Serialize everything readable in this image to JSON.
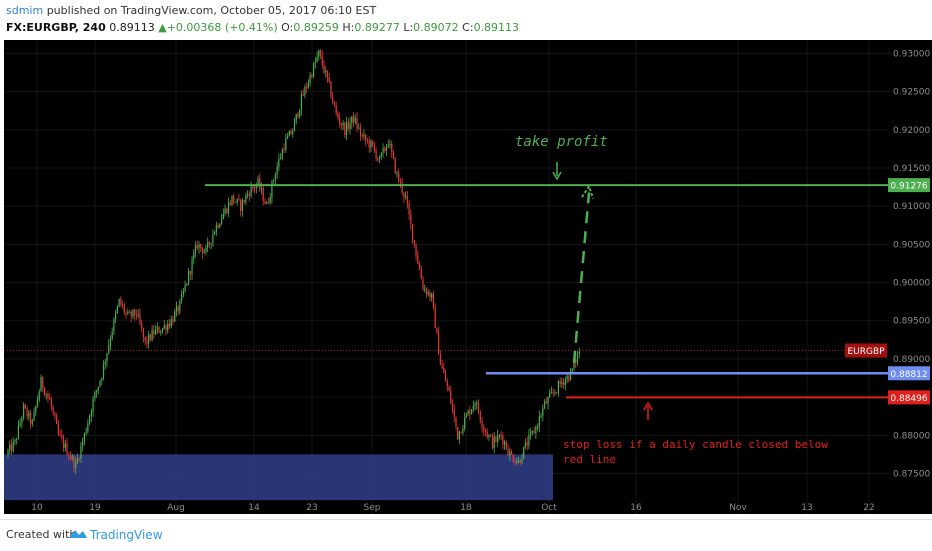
{
  "header": {
    "author": "sdmim",
    "published_text": "published on TradingView.com, October 05, 2017 06:10 EST",
    "symbol": "FX:EURGBP, 240",
    "last": "0.89113",
    "change": "+0.00368 (+0.41%)",
    "o_label": "O:",
    "o": "0.89259",
    "h_label": "H:",
    "h": "0.89277",
    "l_label": "L:",
    "l": "0.89072",
    "c_label": "C:",
    "c": "0.89113"
  },
  "footer": {
    "created_with": "Created with",
    "brand": "TradingView"
  },
  "colors": {
    "background": "#000000",
    "up": "#4caf50",
    "down": "#e53935",
    "take_profit": "#4caf50",
    "entry": "#6d8df2",
    "stop": "#e0201c",
    "zone": "#2e3a80",
    "tag_red": "#a30f0f"
  },
  "chart_data": {
    "type": "candlestick",
    "symbol": "EURGBP",
    "timeframe": "240",
    "ylim": [
      0.871,
      0.9315
    ],
    "y_ticks": [
      "0.93000",
      "0.92500",
      "0.92000",
      "0.91500",
      "0.91000",
      "0.90500",
      "0.90000",
      "0.89500",
      "0.89000",
      "0.88500",
      "0.88000",
      "0.87500"
    ],
    "x_ticks": [
      "10",
      "19",
      "Aug",
      "14",
      "23",
      "Sep",
      "18",
      "Oct",
      "16",
      "Nov",
      "13",
      "22"
    ],
    "price_path": [
      [
        0,
        0.8775
      ],
      [
        1,
        0.879
      ],
      [
        2,
        0.8835
      ],
      [
        3,
        0.8815
      ],
      [
        4,
        0.887
      ],
      [
        5,
        0.8845
      ],
      [
        6,
        0.88
      ],
      [
        7,
        0.878
      ],
      [
        8,
        0.876
      ],
      [
        9,
        0.88
      ],
      [
        10,
        0.8845
      ],
      [
        11,
        0.888
      ],
      [
        12,
        0.893
      ],
      [
        13,
        0.8975
      ],
      [
        14,
        0.8955
      ],
      [
        15,
        0.896
      ],
      [
        16,
        0.892
      ],
      [
        17,
        0.8935
      ],
      [
        18,
        0.894
      ],
      [
        19,
        0.895
      ],
      [
        20,
        0.897
      ],
      [
        21,
        0.901
      ],
      [
        22,
        0.905
      ],
      [
        23,
        0.904
      ],
      [
        24,
        0.907
      ],
      [
        25,
        0.909
      ],
      [
        26,
        0.911
      ],
      [
        27,
        0.91
      ],
      [
        28,
        0.912
      ],
      [
        29,
        0.913
      ],
      [
        30,
        0.91
      ],
      [
        31,
        0.9145
      ],
      [
        32,
        0.918
      ],
      [
        33,
        0.92
      ],
      [
        34,
        0.924
      ],
      [
        35,
        0.927
      ],
      [
        36,
        0.93
      ],
      [
        37,
        0.9265
      ],
      [
        38,
        0.922
      ],
      [
        39,
        0.92
      ],
      [
        40,
        0.9215
      ],
      [
        41,
        0.919
      ],
      [
        42,
        0.918
      ],
      [
        43,
        0.916
      ],
      [
        44,
        0.9185
      ],
      [
        45,
        0.914
      ],
      [
        46,
        0.911
      ],
      [
        47,
        0.905
      ],
      [
        48,
        0.8995
      ],
      [
        49,
        0.898
      ],
      [
        50,
        0.8895
      ],
      [
        51,
        0.8855
      ],
      [
        52,
        0.88
      ],
      [
        53,
        0.8825
      ],
      [
        54,
        0.8845
      ],
      [
        55,
        0.881
      ],
      [
        56,
        0.879
      ],
      [
        57,
        0.88
      ],
      [
        58,
        0.8775
      ],
      [
        59,
        0.8765
      ],
      [
        60,
        0.879
      ],
      [
        61,
        0.881
      ],
      [
        62,
        0.884
      ],
      [
        63,
        0.8855
      ],
      [
        64,
        0.887
      ],
      [
        65,
        0.888
      ],
      [
        66,
        0.8911
      ]
    ],
    "levels": [
      {
        "label": "0.91276",
        "price": 0.91276,
        "kind": "take_profit"
      },
      {
        "label": "0.88812",
        "price": 0.88812,
        "kind": "entry"
      },
      {
        "label": "0.88496",
        "price": 0.88496,
        "kind": "stop"
      }
    ],
    "last_price_tag": {
      "label": "EURGBP",
      "price": 0.8911
    },
    "support_zone": [
      0.8715,
      0.8775
    ],
    "annotations": [
      {
        "text": "take profit"
      },
      {
        "text": "stop loss if a daily candle closed below\nred line"
      }
    ]
  }
}
